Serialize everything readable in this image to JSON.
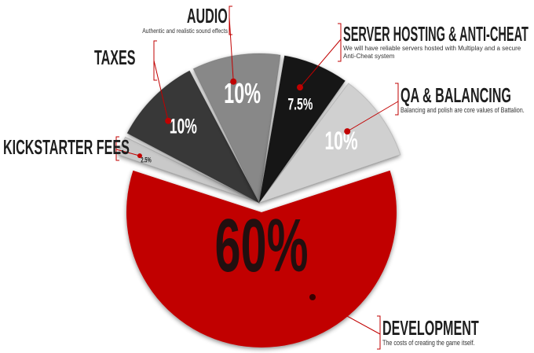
{
  "chart_data": {
    "type": "pie",
    "title": "",
    "slices": [
      {
        "name": "Development",
        "label": "DEVELOPMENT",
        "description": "The costs of creating the game itself.",
        "value": 60,
        "value_label": "60%",
        "color": "#c10000"
      },
      {
        "name": "Kickstarter Fees",
        "label": "KICKSTARTER FEES",
        "description": "",
        "value": 2.5,
        "value_label": "2.5%",
        "color": "#c9c9c9"
      },
      {
        "name": "Taxes",
        "label": "TAXES",
        "description": "",
        "value": 10,
        "value_label": "10%",
        "color": "#383838"
      },
      {
        "name": "Audio",
        "label": "AUDIO",
        "description": "Authentic and realistic sound effects",
        "value": 10,
        "value_label": "10%",
        "color": "#888888"
      },
      {
        "name": "Server Hosting & Anti-Cheat",
        "label": "SERVER HOSTING & ANTI-CHEAT",
        "description": "We will have reliable servers hosted with Multiplay and a secure Anti-Cheat system",
        "value": 7.5,
        "value_label": "7.5%",
        "color": "#141414"
      },
      {
        "name": "QA & Balancing",
        "label": "QA & BALANCING",
        "description": "Balancing and polish are core values of Battalion.",
        "value": 10,
        "value_label": "10%",
        "color": "#d0d0d0"
      }
    ],
    "accent_color": "#c10000"
  }
}
